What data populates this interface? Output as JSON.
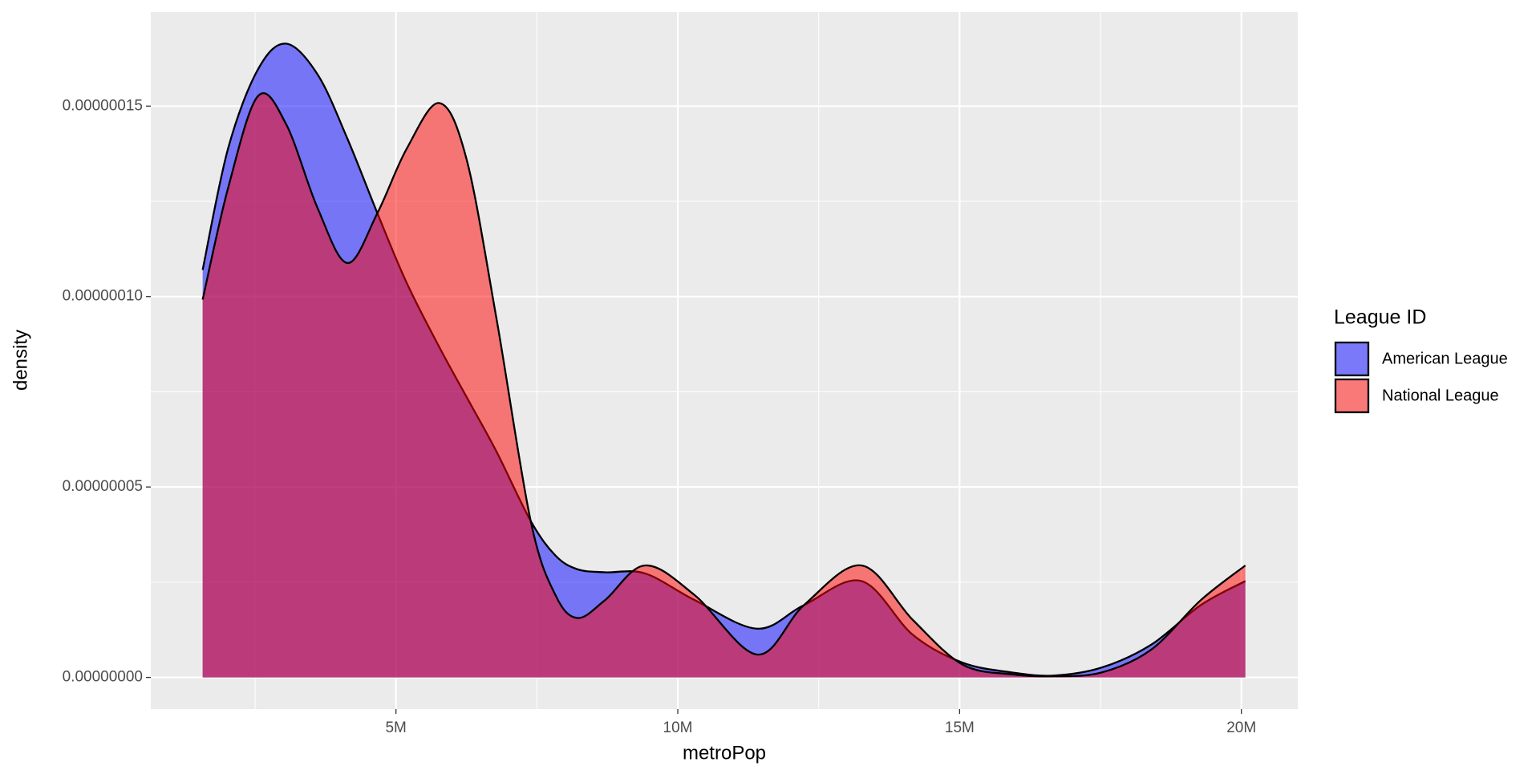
{
  "chart_data": {
    "type": "density",
    "xlabel": "metroPop",
    "ylabel": "density",
    "legend_title": "League ID",
    "legend": "right",
    "grid": true,
    "x": [
      1570000,
      2020000,
      2550000,
      3050000,
      3610000,
      4140000,
      4670000,
      5190000,
      5770000,
      6250000,
      6780000,
      7390000,
      7830000,
      8220000,
      8710000,
      9420000,
      10300000,
      11410000,
      12240000,
      13260000,
      14170000,
      15050000,
      15930000,
      16670000,
      17520000,
      18400000,
      19280000,
      20070000
    ],
    "series": [
      {
        "name": "American League",
        "color": "#0000ff",
        "values": [
          1.07e-07,
          1.388e-07,
          1.596e-07,
          1.664e-07,
          1.583e-07,
          1.414e-07,
          1.219e-07,
          1.036e-07,
          8.67e-08,
          7.37e-08,
          5.94e-08,
          4.11e-08,
          3.2e-08,
          2.84e-08,
          2.76e-08,
          2.73e-08,
          2.03e-08,
          1.28e-08,
          1.9e-08,
          2.53e-08,
          1.12e-08,
          3.9e-09,
          1.3e-09,
          5e-10,
          2.6e-09,
          8.6e-09,
          1.9e-08,
          2.53e-08
        ]
      },
      {
        "name": "National League",
        "color": "#ff0000",
        "values": [
          9.92e-08,
          1.284e-07,
          1.526e-07,
          1.453e-07,
          1.232e-07,
          1.088e-07,
          1.219e-07,
          1.388e-07,
          1.508e-07,
          1.362e-07,
          9.45e-08,
          4.11e-08,
          2.16e-08,
          1.56e-08,
          2.03e-08,
          2.94e-08,
          2.16e-08,
          6e-09,
          1.9e-08,
          2.94e-08,
          1.51e-08,
          3.4e-09,
          8e-10,
          3e-10,
          1.3e-09,
          7.3e-09,
          2.03e-08,
          2.94e-08
        ]
      }
    ],
    "xlim": [
      650000,
      21000000
    ],
    "xticks": [
      {
        "value": 5000000,
        "label": "5M"
      },
      {
        "value": 10000000,
        "label": "10M"
      },
      {
        "value": 15000000,
        "label": "15M"
      },
      {
        "value": 20000000,
        "label": "20M"
      }
    ],
    "ylim": [
      -8.3e-09,
      1.747e-07
    ],
    "yticks": [
      {
        "value": 0,
        "label": "0.00000000"
      },
      {
        "value": 5e-08,
        "label": "0.00000005"
      },
      {
        "value": 1e-07,
        "label": "0.00000010"
      },
      {
        "value": 1.5e-07,
        "label": "0.00000015"
      }
    ]
  }
}
